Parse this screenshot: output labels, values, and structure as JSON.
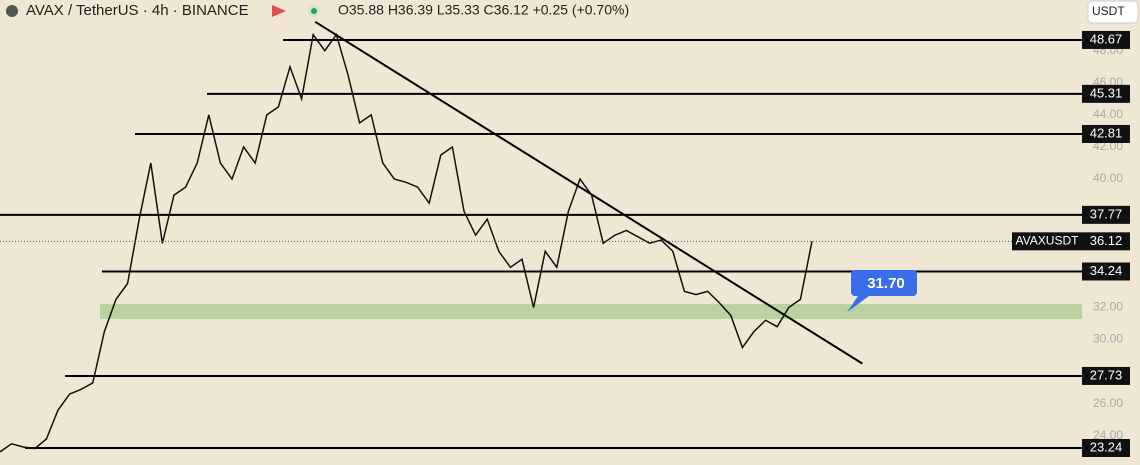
{
  "header": {
    "symbol": "AVAX / TetherUS · 4h · BINANCE",
    "ohlc": "O35.88 H36.39 L35.33 C36.12 +0.25 (+0.70%)",
    "currency": "USDT"
  },
  "chart_data": {
    "type": "line",
    "ylim": [
      22.18,
      51.16
    ],
    "yticks": [
      {
        "value": 48,
        "label": "48.00"
      },
      {
        "value": 46,
        "label": "46.00"
      },
      {
        "value": 44,
        "label": "44.00"
      },
      {
        "value": 42,
        "label": "42.00"
      },
      {
        "value": 40,
        "label": "40.00"
      },
      {
        "value": 32,
        "label": "32.00"
      },
      {
        "value": 30,
        "label": "30.00"
      },
      {
        "value": 26,
        "label": "26.00"
      },
      {
        "value": 24,
        "label": "24.00"
      }
    ],
    "levels": [
      {
        "value": 48.67,
        "label": "48.67"
      },
      {
        "value": 45.31,
        "label": "45.31"
      },
      {
        "value": 42.81,
        "label": "42.81"
      },
      {
        "value": 37.77,
        "label": "37.77"
      },
      {
        "value": 34.24,
        "label": "34.24"
      },
      {
        "value": 27.73,
        "label": "27.73"
      },
      {
        "value": 23.24,
        "label": "23.24"
      }
    ],
    "zone": [
      31.28,
      32.21
    ],
    "trendline": {
      "x": [
        27,
        74
      ],
      "values": [
        49.8,
        28.5
      ]
    },
    "callout": {
      "value": 31.7,
      "label": "31.70"
    },
    "last": {
      "name": "AVAXUSDT",
      "value": 36.12,
      "label": "36.12"
    },
    "series": [
      {
        "color": "#111111",
        "values": [
          23.0,
          23.5,
          23.3,
          23.2,
          23.8,
          25.6,
          26.6,
          26.9,
          27.3,
          30.5,
          32.5,
          33.5,
          37.5,
          41,
          36,
          39,
          39.5,
          41,
          44,
          41,
          40,
          42,
          41,
          44,
          44.5,
          47,
          45,
          49,
          48,
          49,
          46.5,
          43.5,
          44,
          41,
          40,
          39.8,
          39.5,
          38.5,
          41.5,
          42,
          38,
          36.5,
          37.5,
          35.5,
          34.5,
          35,
          32,
          35.5,
          34.5,
          38,
          40,
          39,
          36,
          36.5,
          36.8,
          36.4,
          36,
          36.2,
          35.5,
          33,
          32.8,
          33,
          32.3,
          31.5,
          29.5,
          30.5,
          31.2,
          30.8,
          32,
          32.5,
          36.12
        ]
      }
    ]
  }
}
